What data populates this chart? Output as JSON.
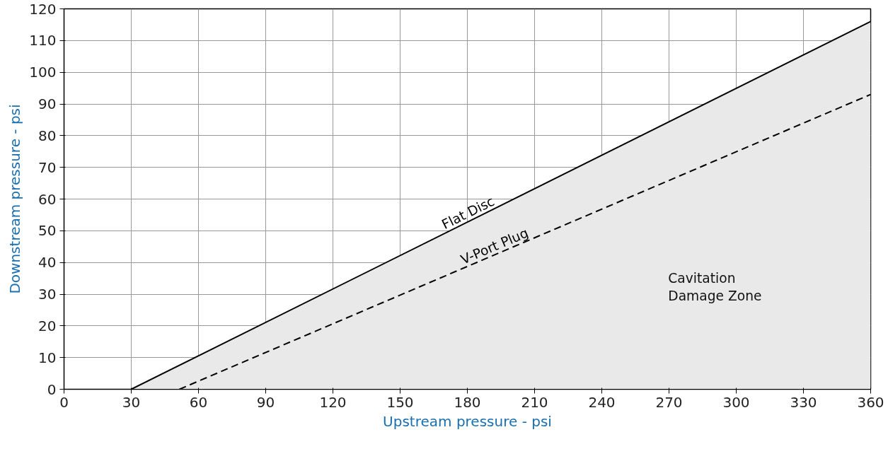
{
  "chart_data": {
    "type": "line",
    "xlabel": "Upstream pressure - psi",
    "ylabel": "Downstream pressure - psi",
    "xlim": [
      0,
      360
    ],
    "ylim": [
      0,
      120
    ],
    "xticks": [
      0,
      30,
      60,
      90,
      120,
      150,
      180,
      210,
      240,
      270,
      300,
      330,
      360
    ],
    "yticks": [
      0,
      10,
      20,
      30,
      40,
      50,
      60,
      70,
      80,
      90,
      100,
      110,
      120
    ],
    "grid": true,
    "series": [
      {
        "name": "Flat Disc",
        "type": "area",
        "color": "#000000",
        "line_style": "solid",
        "x": [
          30,
          360
        ],
        "values": [
          0,
          116
        ]
      },
      {
        "name": "V-Port Plug",
        "color": "#000000",
        "line_style": "dashed",
        "x": [
          51.5,
          360
        ],
        "values": [
          0,
          93
        ]
      }
    ],
    "annotations": [
      "Cavitation\nDamage Zone"
    ]
  }
}
